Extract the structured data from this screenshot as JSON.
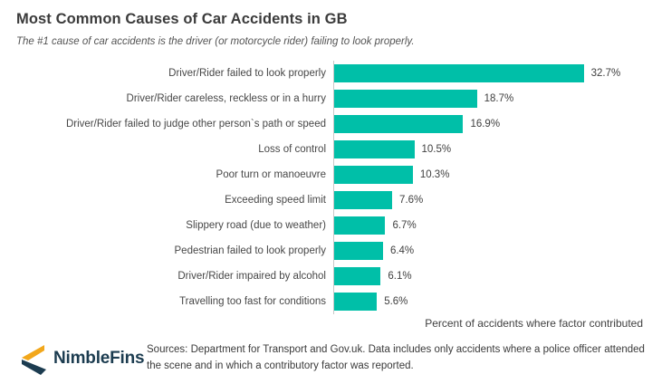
{
  "header": {
    "title": "Most Common Causes of Car Accidents in GB",
    "subtitle": "The #1 cause of car accidents is the driver (or motorcycle rider) failing to look properly."
  },
  "chart_data": {
    "type": "bar",
    "orientation": "horizontal",
    "title": "Most Common Causes of Car Accidents in GB",
    "categories": [
      "Driver/Rider failed to look properly",
      "Driver/Rider careless, reckless or in a hurry",
      "Driver/Rider failed to judge other person`s path or speed",
      "Loss of control",
      "Poor turn or manoeuvre",
      "Exceeding speed limit",
      "Slippery road (due to weather)",
      "Pedestrian failed to look properly",
      "Driver/Rider impaired by alcohol",
      "Travelling too fast for conditions"
    ],
    "values": [
      32.7,
      18.7,
      16.9,
      10.5,
      10.3,
      7.6,
      6.7,
      6.4,
      6.1,
      5.6
    ],
    "value_labels": [
      "32.7%",
      "18.7%",
      "16.9%",
      "10.5%",
      "10.3%",
      "7.6%",
      "6.7%",
      "6.4%",
      "6.1%",
      "5.6%"
    ],
    "xlabel": "Percent of accidents where factor contributed",
    "ylabel": "",
    "xlim": [
      0,
      35
    ],
    "grid": false,
    "legend": false,
    "bar_color": "#00bfa8",
    "axis_line_color": "#c9c9c9",
    "value_label_position": "outside-end"
  },
  "footer": {
    "logo_text": "NimbleFins",
    "logo_colors": {
      "navy": "#1c3c50",
      "gold": "#f2a71b"
    },
    "sources_text": "Sources: Department for Transport and Gov.uk. Data includes only accidents where a police officer attended the scene and in which a contributory factor was reported."
  }
}
